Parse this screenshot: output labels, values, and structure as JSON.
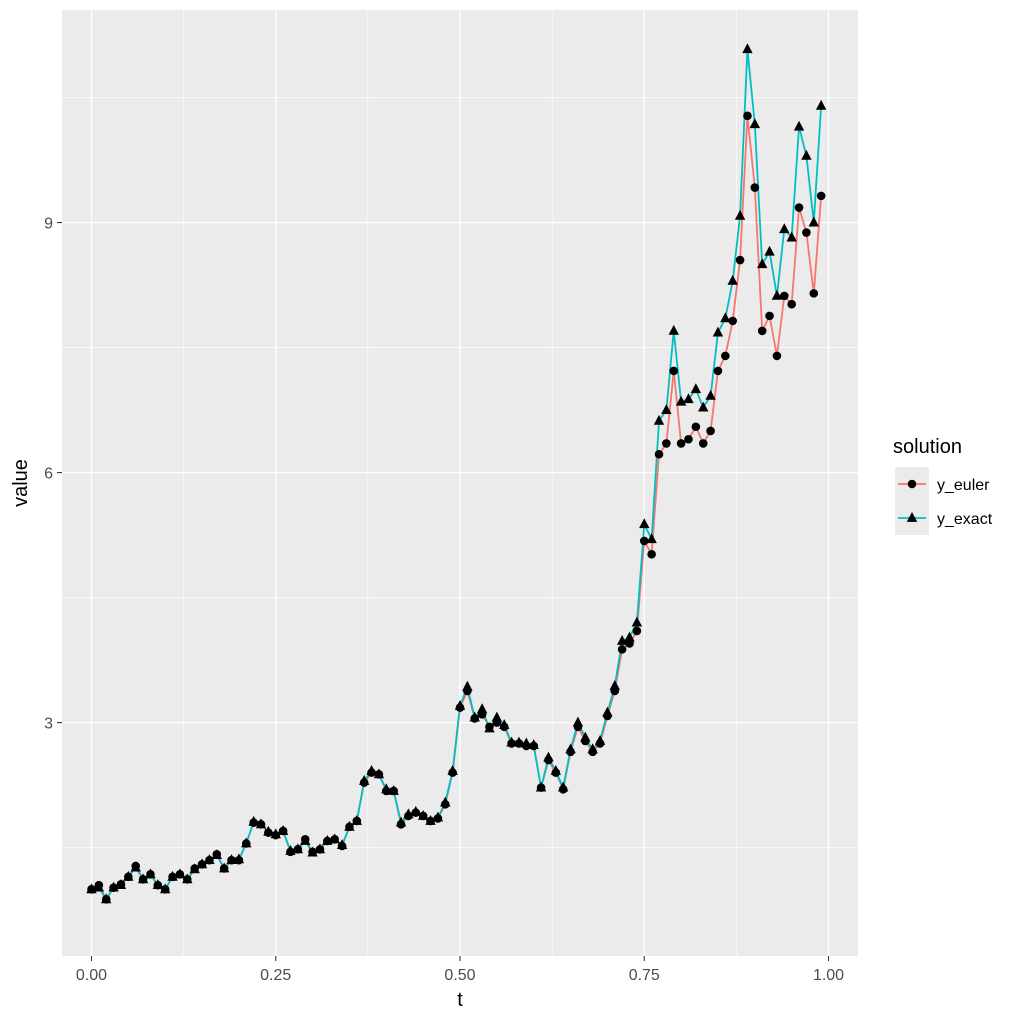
{
  "chart_data": {
    "type": "line",
    "xlabel": "t",
    "ylabel": "value",
    "xlim": [
      -0.04,
      1.04
    ],
    "ylim": [
      0.2,
      11.55
    ],
    "x_ticks": [
      0.0,
      0.25,
      0.5,
      0.75,
      1.0
    ],
    "x_tick_labels": [
      "0.00",
      "0.25",
      "0.50",
      "0.75",
      "1.00"
    ],
    "y_ticks": [
      3,
      6,
      9
    ],
    "y_tick_labels": [
      "3",
      "6",
      "9"
    ],
    "grid": true,
    "legend": {
      "title": "solution",
      "position": "right"
    },
    "x": [
      0.0,
      0.01,
      0.02,
      0.03,
      0.04,
      0.05,
      0.06,
      0.07,
      0.08,
      0.09,
      0.1,
      0.11,
      0.12,
      0.13,
      0.14,
      0.15,
      0.16,
      0.17,
      0.18,
      0.19,
      0.2,
      0.21,
      0.22,
      0.23,
      0.24,
      0.25,
      0.26,
      0.27,
      0.28,
      0.29,
      0.3,
      0.31,
      0.32,
      0.33,
      0.34,
      0.35,
      0.36,
      0.37,
      0.38,
      0.39,
      0.4,
      0.41,
      0.42,
      0.43,
      0.44,
      0.45,
      0.46,
      0.47,
      0.48,
      0.49,
      0.5,
      0.51,
      0.52,
      0.53,
      0.54,
      0.55,
      0.56,
      0.57,
      0.58,
      0.59,
      0.6,
      0.61,
      0.62,
      0.63,
      0.64,
      0.65,
      0.66,
      0.67,
      0.68,
      0.69,
      0.7,
      0.71,
      0.72,
      0.73,
      0.74,
      0.75,
      0.76,
      0.77,
      0.78,
      0.79,
      0.8,
      0.81,
      0.82,
      0.83,
      0.84,
      0.85,
      0.86,
      0.87,
      0.88,
      0.89,
      0.9,
      0.91,
      0.92,
      0.93,
      0.94,
      0.95,
      0.96,
      0.97,
      0.98,
      0.99
    ],
    "series": [
      {
        "name": "y_euler",
        "color": "#F8766D",
        "marker": "circle",
        "values": [
          1.0,
          1.05,
          0.88,
          1.02,
          1.06,
          1.15,
          1.28,
          1.12,
          1.18,
          1.05,
          1.0,
          1.15,
          1.18,
          1.12,
          1.25,
          1.3,
          1.35,
          1.42,
          1.25,
          1.35,
          1.35,
          1.55,
          1.8,
          1.78,
          1.68,
          1.65,
          1.7,
          1.45,
          1.48,
          1.6,
          1.45,
          1.48,
          1.58,
          1.6,
          1.52,
          1.75,
          1.82,
          2.28,
          2.4,
          2.38,
          2.18,
          2.18,
          1.78,
          1.88,
          1.92,
          1.88,
          1.82,
          1.85,
          2.02,
          2.4,
          3.18,
          3.38,
          3.05,
          3.1,
          2.95,
          3.0,
          2.95,
          2.75,
          2.75,
          2.72,
          2.72,
          2.22,
          2.55,
          2.4,
          2.2,
          2.65,
          2.95,
          2.78,
          2.65,
          2.75,
          3.08,
          3.38,
          3.88,
          3.95,
          4.1,
          5.18,
          5.02,
          6.22,
          6.35,
          7.22,
          6.35,
          6.4,
          6.55,
          6.35,
          6.5,
          7.22,
          7.4,
          7.82,
          8.55,
          10.28,
          9.42,
          7.7,
          7.88,
          7.4,
          8.12,
          8.02,
          9.18,
          8.88,
          8.15,
          9.32
        ]
      },
      {
        "name": "y_exact",
        "color": "#00BFC4",
        "marker": "triangle",
        "values": [
          1.0,
          1.02,
          0.88,
          1.02,
          1.05,
          1.15,
          1.26,
          1.12,
          1.18,
          1.05,
          1.0,
          1.15,
          1.18,
          1.12,
          1.24,
          1.3,
          1.35,
          1.41,
          1.25,
          1.35,
          1.36,
          1.55,
          1.81,
          1.78,
          1.69,
          1.66,
          1.7,
          1.46,
          1.48,
          1.58,
          1.44,
          1.48,
          1.58,
          1.6,
          1.53,
          1.75,
          1.82,
          2.3,
          2.42,
          2.38,
          2.2,
          2.18,
          1.8,
          1.9,
          1.93,
          1.88,
          1.82,
          1.86,
          2.04,
          2.42,
          3.2,
          3.43,
          3.06,
          3.16,
          2.93,
          3.06,
          2.97,
          2.76,
          2.76,
          2.75,
          2.73,
          2.22,
          2.58,
          2.42,
          2.22,
          2.68,
          3.0,
          2.82,
          2.68,
          2.78,
          3.12,
          3.44,
          3.98,
          4.02,
          4.2,
          5.38,
          5.2,
          6.62,
          6.75,
          7.7,
          6.85,
          6.88,
          7.0,
          6.78,
          6.92,
          7.68,
          7.85,
          8.3,
          9.08,
          11.08,
          10.18,
          8.5,
          8.65,
          8.12,
          8.92,
          8.82,
          10.15,
          9.8,
          9.0,
          10.4
        ]
      }
    ]
  }
}
